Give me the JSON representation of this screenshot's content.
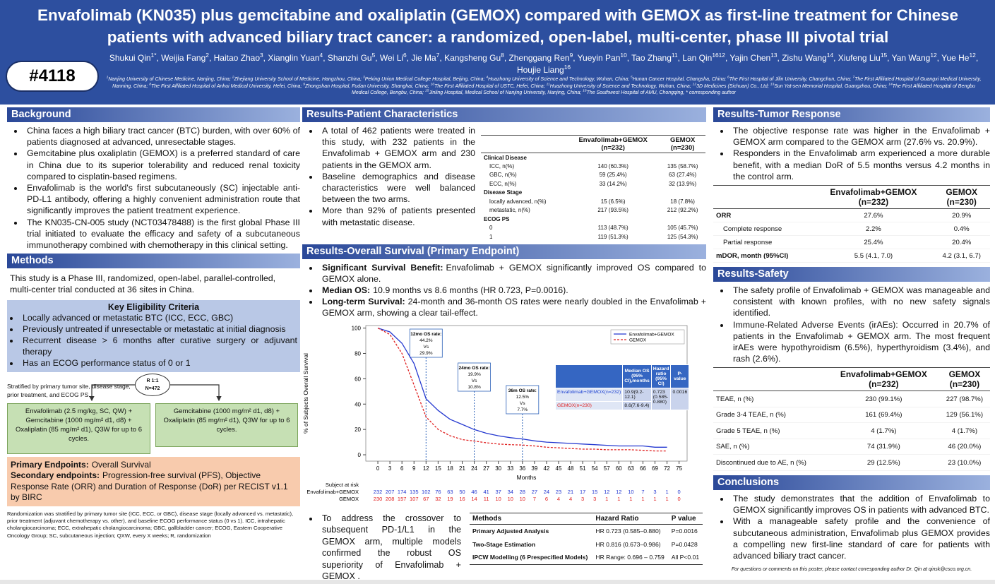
{
  "header": {
    "title": "Envafolimab (KN035) plus gemcitabine and oxaliplatin (GEMOX) compared with GEMOX as first-line treatment for Chinese patients with advanced biliary tract cancer: a randomized, open-label, multi-center, phase III pivotal trial",
    "poster_id": "#4118",
    "authors": [
      {
        "name": "Shukui Qin",
        "sup": "1*"
      },
      {
        "name": ", Weijia Fang",
        "sup": "2"
      },
      {
        "name": ", Haitao Zhao",
        "sup": "3"
      },
      {
        "name": ", Xianglin Yuan",
        "sup": "4"
      },
      {
        "name": ", Shanzhi Gu",
        "sup": "5"
      },
      {
        "name": ", Wei Li",
        "sup": "6"
      },
      {
        "name": ", Jie Ma",
        "sup": "7"
      },
      {
        "name": ", Kangsheng Gu",
        "sup": "8"
      },
      {
        "name": ", Zhenggang Ren",
        "sup": "9"
      },
      {
        "name": ", Yueyin Pan",
        "sup": "10"
      },
      {
        "name": ", Tao Zhang",
        "sup": "11"
      },
      {
        "name": ", Lan Qin",
        "sup": "1612"
      },
      {
        "name": ", Yajin Chen",
        "sup": "13"
      },
      {
        "name": ", Zishu Wang",
        "sup": "14"
      },
      {
        "name": ", Xiufeng Liu",
        "sup": "15"
      },
      {
        "name": ", Yan Wang",
        "sup": "12"
      },
      {
        "name": ", Yue He",
        "sup": "12"
      },
      {
        "name": ", Houjie Liang",
        "sup": "16"
      }
    ],
    "affiliations": [
      {
        "sup": "1",
        "text": "Nanjing University of Chinese Medicine, Nanjing, China; "
      },
      {
        "sup": "2",
        "text": "Zhejiang University School of Medicine, Hangzhou, China; "
      },
      {
        "sup": "3",
        "text": "Peking Union Medical College Hospital, Beijing, China; "
      },
      {
        "sup": "4",
        "text": "Huazhong University of Science and Technology, Wuhan, China; "
      },
      {
        "sup": "5",
        "text": "Hunan Cancer Hospital, Changsha, China; "
      },
      {
        "sup": "6",
        "text": "The First Hospital of Jilin University, Changchun, China; "
      },
      {
        "sup": "7",
        "text": "The First Affiliated Hospital of Guangxi Medical University, Nanning, China; "
      },
      {
        "sup": "8",
        "text": "The First Affiliated Hospital of Anhui Medical University, Hefei, China; "
      },
      {
        "sup": "9",
        "text": "Zhongshan Hospital, Fudan University, Shanghai, China; "
      },
      {
        "sup": "10",
        "text": "The First Affiliated Hospital of USTC, Hefei, China; "
      },
      {
        "sup": "11",
        "text": "Huazhong University of Science and Technology, Wuhan, China; "
      },
      {
        "sup": "12",
        "text": "3D Medicines (Sichuan) Co., Ltd; "
      },
      {
        "sup": "13",
        "text": "Sun Yat-sen Memorial Hospital, Guangzhou, China; "
      },
      {
        "sup": "14",
        "text": "The First Affiliated Hospital of Bengbu Medical College, Bengbu, China; "
      },
      {
        "sup": "15",
        "text": "Jinling Hospital, Medical School of Nanjing University, Nanjing, China; "
      },
      {
        "sup": "16",
        "text": "The Southwest Hospital of AMU, Chongqing, "
      }
    ],
    "corresponding": "* corresponding author"
  },
  "background": {
    "heading": "Background",
    "bullets": [
      "China faces a high biliary tract cancer (BTC) burden, with over 60% of patients diagnosed at advanced, unresectable stages.",
      "Gemcitabine plus oxaliplatin (GEMOX) is a preferred standard of care in China due to its superior tolerability and reduced renal toxicity compared to cisplatin-based regimens.",
      "Envafolimab is the world's first subcutaneously (SC) injectable anti-PD-L1 antibody, offering a highly convenient administration route that significantly improves the patient treatment experience.",
      "The KN035-CN-005 study (NCT03478488) is the first global Phase III trial initiated to evaluate the efficacy and safety of a subcutaneous immunotherapy combined with chemotherapy in this clinical setting."
    ]
  },
  "methods": {
    "heading": "Methods",
    "intro": "This study is a Phase III, randomized, open-label, parallel-controlled, multi-center trial conducted at 36 sites in China.",
    "eligibility": {
      "title": "Key Eligibility Criteria",
      "items": [
        "Locally advanced or metastatic BTC  (ICC, ECC, GBC)",
        "Previously untreated if unresectable or metastatic at initial diagnosis",
        "Recurrent disease  > 6 months after curative surgery or adjuvant therapy",
        "Has an ECOG performance status of 0 or 1"
      ]
    },
    "stratified": "Stratified by primary tumor site, disease stage, prior treatment, and ECOG PS.",
    "randomization": [
      "R 1:1",
      "N=472"
    ],
    "arm_a": "Envafolimab (2.5 mg/kg, SC, QW) + Gemcitabine (1000 mg/m² d1, d8) + Oxaliplatin (85 mg/m² d1), Q3W for up to 6 cycles.",
    "arm_b": "Gemcitabine (1000 mg/m² d1, d8) + Oxaliplatin (85 mg/m² d1), Q3W for up to 6 cycles.",
    "endpoints": [
      {
        "bold": "Primary Endpoints:",
        "text": "Overall Survival"
      },
      {
        "bold": "Secondary endpoints:",
        "text": "Progression-free survival (PFS), Objective Response Rate (ORR) and Duration of Response (DoR) per RECIST v1.1 by BIRC"
      }
    ],
    "footnote": "Randomization was stratified by primary tumor site (ICC, ECC, or GBC), disease stage (locally advanced vs. metastatic), prior treatment (adjuvant chemotherapy vs. other), and baseline ECOG performance status (0 vs 1). ICC, intrahepatic cholangiocarcinoma; ECC, extrahepatic cholangiocarcinoma; GBC, gallbladder cancer; ECOG, Eastern Cooperative Oncology Group; SC, subcutaneous injection; QXW, every X weeks; R, randomization"
  },
  "patient_characteristics": {
    "heading": "Results-Patient Characteristics",
    "bullets": [
      "A total of 462 patients were treated in this study, with 232 patients in the Envafolimab + GEMOX arm and 230 patients in the GEMOX arm.",
      "Baseline demographics and disease characteristics were well balanced between the two arms.",
      "More than 92% of patients presented with metastatic disease."
    ],
    "table": {
      "header": [
        [
          "Envafolimab+GEMOX",
          "(n=232)"
        ],
        [
          "GEMOX",
          "(n=230)"
        ]
      ],
      "rows": [
        [
          "Clinical Disease"
        ],
        [
          "ICC,   n(%)",
          "140 (60.3%)",
          "135 (58.7%)"
        ],
        [
          "GBC,  n(%)",
          "59 (25.4%)",
          "63 (27.4%)"
        ],
        [
          "ECC,   n(%)",
          "33 (14.2%)",
          "32 (13.9%)"
        ],
        [
          "Disease Stage"
        ],
        [
          "locally advanced,   n(%)",
          "15 (6.5%)",
          "18 (7.8%)"
        ],
        [
          "metastatic,   n(%)",
          "217 (93.5%)",
          "212 (92.2%)"
        ],
        [
          "ECOG PS"
        ],
        [
          "0",
          "113 (48.7%)",
          "105 (45.7%)"
        ],
        [
          "1",
          "119 (51.3%)",
          "125 (54.3%)"
        ]
      ]
    }
  },
  "overall_survival": {
    "heading": "Results-Overall Survival (Primary Endpoint)",
    "bullets": [
      {
        "bold": "Significant Survival Benefit:",
        "text": "Envafolimab + GEMOX significantly improved OS compared to GEMOX alone."
      },
      {
        "bold": "Median OS:",
        "text": "10.9 months vs 8.6 months (HR 0.723, P=0.0016)."
      },
      {
        "bold": "Long-term Survival:",
        "text": "24-month and 36-month OS rates were nearly doubled in the Envafolimab + GEMOX arm, showing a clear tail-effect."
      }
    ],
    "crossover": [
      "To address the crossover to subsequent PD-1/L1 in the GEMOX arm, multiple models confirmed the robust OS superiority of Envafolimab + GEMOX ."
    ],
    "sensitivity_table": {
      "header": [
        "Methods",
        "Hazard Ratio",
        "P value"
      ],
      "rows": [
        [
          "Primary Adjusted Analysis",
          "HR 0.723 (0.585–0.880)",
          "P=0.0016"
        ],
        [
          "Two-Stage Estimation",
          "HR 0.816 (0.673–0.986)",
          "P=0.0428"
        ],
        [
          "IPCW Modelling (6 Prespecified Models)",
          "HR Range: 0.696 – 0.759",
          "All P<0.01"
        ]
      ]
    }
  },
  "chart_data": {
    "type": "line",
    "xlabel": "Months",
    "ylabel": "% of Subjects Overall Survival",
    "x": [
      0,
      3,
      6,
      9,
      12,
      15,
      18,
      21,
      24,
      27,
      30,
      33,
      36,
      39,
      42,
      45,
      48,
      51,
      54,
      57,
      60,
      63,
      66,
      69,
      72
    ],
    "series": [
      {
        "name": "Envafolimab+GEMOX",
        "color": "#2438d0",
        "values": [
          100,
          97,
          88,
          72,
          44.2,
          35,
          28,
          24,
          19.9,
          17,
          15,
          13.5,
          12.5,
          11,
          10,
          9.5,
          9,
          8.5,
          8,
          7.5,
          7,
          7,
          7,
          6,
          6
        ]
      },
      {
        "name": "GEMOX",
        "color": "#e02020",
        "values": [
          100,
          95,
          80,
          55,
          29.9,
          20,
          15,
          12,
          10.8,
          9.5,
          8.5,
          8,
          7.7,
          7,
          6,
          5.5,
          5,
          4.5,
          4.5,
          4,
          4,
          4,
          3.5,
          3,
          3
        ]
      }
    ],
    "xlim": [
      -3,
      77
    ],
    "ylim": [
      -5,
      102
    ],
    "xticks": [
      0,
      3,
      6,
      9,
      12,
      15,
      18,
      21,
      24,
      27,
      30,
      33,
      36,
      39,
      42,
      45,
      48,
      51,
      54,
      57,
      60,
      63,
      66,
      69,
      72,
      75
    ],
    "yticks": [
      0,
      20,
      40,
      60,
      80,
      100
    ],
    "legend": "upper right",
    "grid": false,
    "annotations": [
      {
        "x": 12,
        "lines": [
          "12mo OS rate:",
          "44.2%",
          "Vs",
          "29.9%"
        ]
      },
      {
        "x": 24,
        "lines": [
          "24mo OS rate:",
          "19.9%",
          "Vs",
          "10.8%"
        ]
      },
      {
        "x": 36,
        "lines": [
          "36m OS rate:",
          "12.5%",
          "Vs",
          "7.7%"
        ]
      }
    ],
    "inset_table": {
      "header": [
        "Median OS (95% CI),months",
        "Hazard ratio (95% CI)",
        "P-value"
      ],
      "rows": [
        [
          "Envafolimab+GEMOX(n=232)",
          "10.9(9.2-12.1)",
          "0.723 (0.585-0.880)",
          "0.0016"
        ],
        [
          "GEMOX(n=230)",
          "8.6(7.6-9.4)"
        ]
      ]
    },
    "risk_table": {
      "title": "Subject at risk",
      "rows": [
        {
          "label": "Envafolimab+GEMOX",
          "values": [
            232,
            207,
            174,
            135,
            102,
            76,
            63,
            50,
            46,
            41,
            37,
            34,
            28,
            27,
            24,
            23,
            21,
            17,
            15,
            12,
            12,
            10,
            7,
            3,
            1,
            0
          ]
        },
        {
          "label": "GEMOX",
          "values": [
            230,
            208,
            157,
            107,
            67,
            32,
            19,
            16,
            14,
            11,
            10,
            10,
            10,
            7,
            6,
            4,
            4,
            3,
            3,
            1,
            1,
            1,
            1,
            1,
            1,
            0
          ]
        }
      ]
    }
  },
  "tumor_response": {
    "heading": "Results-Tumor Response",
    "bullets": [
      "The objective response rate was higher in the Envafolimab + GEMOX arm compared to the GEMOX arm (27.6% vs. 20.9%).",
      "Responders in the Envafolimab arm experienced a more durable benefit, with a median DoR of 5.5 months versus 4.2 months in the control arm."
    ],
    "table": {
      "header": [
        [
          "Envafolimab+GEMOX",
          "(n=232)"
        ],
        [
          "GEMOX",
          "(n=230)"
        ]
      ],
      "rows": [
        [
          "ORR",
          "27.6%",
          "20.9%"
        ],
        [
          "Complete response",
          "2.2%",
          "0.4%"
        ],
        [
          "Partial response",
          "25.4%",
          "20.4%"
        ],
        [
          "mDOR, month (95%CI)",
          "5.5 (4.1, 7.0)",
          "4.2 (3.1, 6.7)"
        ]
      ]
    }
  },
  "safety": {
    "heading": "Results-Safety",
    "bullets": [
      "The safety profile of Envafolimab + GEMOX was manageable and consistent with known profiles, with no new safety signals identified.",
      "Immune-Related Adverse Events (irAEs): Occurred in 20.7% of patients in the Envafolimab + GEMOX  arm. The most frequent irAEs were hypothyroidism (6.5%), hyperthyroidism (3.4%), and rash (2.6%)."
    ],
    "table": {
      "header": [
        [
          "Envafolimab+GEMOX",
          "(n=232)"
        ],
        [
          "GEMOX",
          "(n=230)"
        ]
      ],
      "rows": [
        [
          "TEAE, n (%)",
          "230 (99.1%)",
          "227 (98.7%)"
        ],
        [
          "Grade 3-4 TEAE, n (%)",
          "161 (69.4%)",
          "129 (56.1%)"
        ],
        [
          "Grade 5 TEAE, n (%)",
          "4   (1.7%)",
          "4 (1.7%)"
        ],
        [
          "SAE, n (%)",
          "74 (31.9%)",
          "46 (20.0%)"
        ],
        [
          "Discontinued due to AE, n (%)",
          "29 (12.5%)",
          "23 (10.0%)"
        ]
      ]
    }
  },
  "conclusions": {
    "heading": "Conclusions",
    "bullets": [
      "The study demonstrates that the addition of Envafolimab to GEMOX significantly improves OS in patients with advanced BTC.",
      "With a manageable safety profile and the convenience of subcutaneous administration, Envafolimab plus GEMOX provides a compelling new first-line standard of care for patients with advanced biliary tract cancer."
    ],
    "contact": "For questions or comments on this poster, please contact corresponding author Dr. Qin at qinsk@csco.org.cn."
  }
}
